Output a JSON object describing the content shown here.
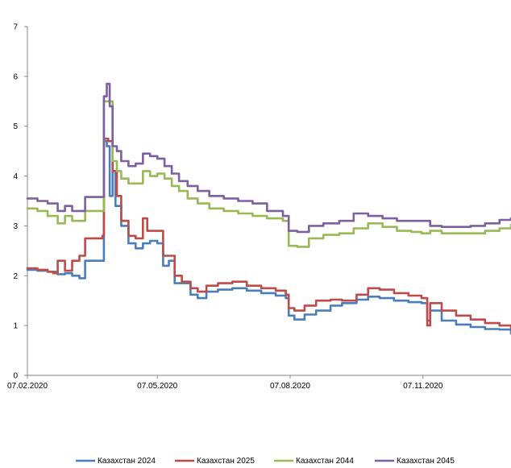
{
  "chart_data": {
    "type": "line",
    "title": "",
    "xlabel": "",
    "ylabel": "",
    "ylim": [
      0,
      7
    ],
    "yticks": [
      0,
      1,
      2,
      3,
      4,
      5,
      6,
      7
    ],
    "xrange": [
      "2020-02-07",
      "2021-01-07"
    ],
    "xticks": [
      {
        "label": "07.02.2020",
        "date": "2020-02-07"
      },
      {
        "label": "07.05.2020",
        "date": "2020-05-07"
      },
      {
        "label": "07.08.2020",
        "date": "2020-08-07"
      },
      {
        "label": "07.11.2020",
        "date": "2020-11-07"
      }
    ],
    "grid": false,
    "legend": "bottom",
    "series": [
      {
        "name": "Казахстан 2024",
        "color": "#4a7ebb",
        "points": [
          [
            "2020-02-07",
            2.12
          ],
          [
            "2020-02-14",
            2.1
          ],
          [
            "2020-02-21",
            2.08
          ],
          [
            "2020-02-28",
            2.03
          ],
          [
            "2020-03-04",
            2.05
          ],
          [
            "2020-03-09",
            2.0
          ],
          [
            "2020-03-14",
            1.95
          ],
          [
            "2020-03-18",
            2.3
          ],
          [
            "2020-03-25",
            2.3
          ],
          [
            "2020-03-30",
            2.3
          ],
          [
            "2020-03-31",
            4.7
          ],
          [
            "2020-04-02",
            4.6
          ],
          [
            "2020-04-04",
            3.6
          ],
          [
            "2020-04-06",
            4.1
          ],
          [
            "2020-04-08",
            3.4
          ],
          [
            "2020-04-12",
            3.0
          ],
          [
            "2020-04-17",
            2.65
          ],
          [
            "2020-04-22",
            2.55
          ],
          [
            "2020-04-27",
            2.65
          ],
          [
            "2020-05-02",
            2.7
          ],
          [
            "2020-05-07",
            2.65
          ],
          [
            "2020-05-11",
            2.2
          ],
          [
            "2020-05-15",
            2.3
          ],
          [
            "2020-05-19",
            1.85
          ],
          [
            "2020-05-24",
            1.85
          ],
          [
            "2020-05-30",
            1.62
          ],
          [
            "2020-06-04",
            1.55
          ],
          [
            "2020-06-10",
            1.68
          ],
          [
            "2020-06-18",
            1.72
          ],
          [
            "2020-06-28",
            1.75
          ],
          [
            "2020-07-08",
            1.7
          ],
          [
            "2020-07-18",
            1.65
          ],
          [
            "2020-07-28",
            1.6
          ],
          [
            "2020-08-04",
            1.55
          ],
          [
            "2020-08-06",
            1.2
          ],
          [
            "2020-08-10",
            1.12
          ],
          [
            "2020-08-17",
            1.22
          ],
          [
            "2020-08-25",
            1.3
          ],
          [
            "2020-09-04",
            1.4
          ],
          [
            "2020-09-12",
            1.45
          ],
          [
            "2020-09-22",
            1.52
          ],
          [
            "2020-09-30",
            1.58
          ],
          [
            "2020-10-08",
            1.55
          ],
          [
            "2020-10-18",
            1.5
          ],
          [
            "2020-10-28",
            1.47
          ],
          [
            "2020-11-06",
            1.45
          ],
          [
            "2020-11-10",
            1.1
          ],
          [
            "2020-11-12",
            1.3
          ],
          [
            "2020-11-20",
            1.1
          ],
          [
            "2020-11-30",
            1.02
          ],
          [
            "2020-12-10",
            0.97
          ],
          [
            "2020-12-20",
            0.93
          ],
          [
            "2020-12-30",
            0.92
          ],
          [
            "2021-01-07",
            0.84
          ]
        ]
      },
      {
        "name": "Казахстан 2025",
        "color": "#be4b48",
        "points": [
          [
            "2020-02-07",
            2.15
          ],
          [
            "2020-02-14",
            2.12
          ],
          [
            "2020-02-21",
            2.08
          ],
          [
            "2020-02-25",
            2.05
          ],
          [
            "2020-02-28",
            2.3
          ],
          [
            "2020-03-04",
            2.1
          ],
          [
            "2020-03-09",
            2.3
          ],
          [
            "2020-03-14",
            2.4
          ],
          [
            "2020-03-18",
            2.75
          ],
          [
            "2020-03-25",
            2.75
          ],
          [
            "2020-03-30",
            2.8
          ],
          [
            "2020-03-31",
            4.75
          ],
          [
            "2020-04-03",
            4.7
          ],
          [
            "2020-04-06",
            4.1
          ],
          [
            "2020-04-09",
            3.6
          ],
          [
            "2020-04-12",
            3.1
          ],
          [
            "2020-04-17",
            2.8
          ],
          [
            "2020-04-22",
            2.75
          ],
          [
            "2020-04-27",
            3.15
          ],
          [
            "2020-04-30",
            2.9
          ],
          [
            "2020-05-07",
            2.9
          ],
          [
            "2020-05-11",
            2.4
          ],
          [
            "2020-05-15",
            2.4
          ],
          [
            "2020-05-19",
            2.0
          ],
          [
            "2020-05-24",
            1.88
          ],
          [
            "2020-05-30",
            1.75
          ],
          [
            "2020-06-04",
            1.68
          ],
          [
            "2020-06-10",
            1.8
          ],
          [
            "2020-06-18",
            1.85
          ],
          [
            "2020-06-28",
            1.88
          ],
          [
            "2020-07-08",
            1.8
          ],
          [
            "2020-07-18",
            1.75
          ],
          [
            "2020-07-28",
            1.7
          ],
          [
            "2020-08-04",
            1.62
          ],
          [
            "2020-08-06",
            1.35
          ],
          [
            "2020-08-10",
            1.3
          ],
          [
            "2020-08-17",
            1.4
          ],
          [
            "2020-08-25",
            1.5
          ],
          [
            "2020-09-04",
            1.52
          ],
          [
            "2020-09-12",
            1.5
          ],
          [
            "2020-09-22",
            1.62
          ],
          [
            "2020-09-30",
            1.75
          ],
          [
            "2020-10-08",
            1.72
          ],
          [
            "2020-10-18",
            1.65
          ],
          [
            "2020-10-28",
            1.6
          ],
          [
            "2020-11-06",
            1.55
          ],
          [
            "2020-11-10",
            1.0
          ],
          [
            "2020-11-12",
            1.45
          ],
          [
            "2020-11-20",
            1.3
          ],
          [
            "2020-11-30",
            1.2
          ],
          [
            "2020-12-10",
            1.12
          ],
          [
            "2020-12-20",
            1.05
          ],
          [
            "2020-12-30",
            1.0
          ],
          [
            "2021-01-07",
            0.95
          ]
        ]
      },
      {
        "name": "Казахстан 2044",
        "color": "#98b954",
        "points": [
          [
            "2020-02-07",
            3.35
          ],
          [
            "2020-02-14",
            3.3
          ],
          [
            "2020-02-21",
            3.2
          ],
          [
            "2020-02-28",
            3.05
          ],
          [
            "2020-03-04",
            3.2
          ],
          [
            "2020-03-09",
            3.1
          ],
          [
            "2020-03-14",
            3.1
          ],
          [
            "2020-03-18",
            3.3
          ],
          [
            "2020-03-25",
            3.3
          ],
          [
            "2020-03-30",
            3.3
          ],
          [
            "2020-03-31",
            5.5
          ],
          [
            "2020-04-03",
            5.5
          ],
          [
            "2020-04-06",
            4.3
          ],
          [
            "2020-04-09",
            4.1
          ],
          [
            "2020-04-12",
            3.95
          ],
          [
            "2020-04-17",
            3.85
          ],
          [
            "2020-04-22",
            3.85
          ],
          [
            "2020-04-27",
            4.1
          ],
          [
            "2020-05-02",
            4.0
          ],
          [
            "2020-05-07",
            4.05
          ],
          [
            "2020-05-12",
            3.95
          ],
          [
            "2020-05-17",
            3.8
          ],
          [
            "2020-05-22",
            3.7
          ],
          [
            "2020-05-28",
            3.55
          ],
          [
            "2020-06-04",
            3.45
          ],
          [
            "2020-06-12",
            3.35
          ],
          [
            "2020-06-22",
            3.3
          ],
          [
            "2020-07-02",
            3.25
          ],
          [
            "2020-07-12",
            3.2
          ],
          [
            "2020-07-22",
            3.15
          ],
          [
            "2020-08-02",
            3.1
          ],
          [
            "2020-08-06",
            2.6
          ],
          [
            "2020-08-12",
            2.58
          ],
          [
            "2020-08-20",
            2.75
          ],
          [
            "2020-08-30",
            2.82
          ],
          [
            "2020-09-10",
            2.85
          ],
          [
            "2020-09-20",
            2.95
          ],
          [
            "2020-09-30",
            3.05
          ],
          [
            "2020-10-10",
            2.98
          ],
          [
            "2020-10-20",
            2.9
          ],
          [
            "2020-10-30",
            2.88
          ],
          [
            "2020-11-06",
            2.85
          ],
          [
            "2020-11-12",
            2.9
          ],
          [
            "2020-11-20",
            2.85
          ],
          [
            "2020-12-01",
            2.85
          ],
          [
            "2020-12-10",
            2.85
          ],
          [
            "2020-12-20",
            2.9
          ],
          [
            "2020-12-30",
            2.95
          ],
          [
            "2021-01-07",
            3.02
          ]
        ]
      },
      {
        "name": "Казахстан 2045",
        "color": "#7d60a0",
        "points": [
          [
            "2020-02-07",
            3.55
          ],
          [
            "2020-02-14",
            3.5
          ],
          [
            "2020-02-21",
            3.45
          ],
          [
            "2020-02-28",
            3.3
          ],
          [
            "2020-03-04",
            3.4
          ],
          [
            "2020-03-09",
            3.3
          ],
          [
            "2020-03-14",
            3.3
          ],
          [
            "2020-03-18",
            3.58
          ],
          [
            "2020-03-25",
            3.58
          ],
          [
            "2020-03-30",
            3.58
          ],
          [
            "2020-03-31",
            5.6
          ],
          [
            "2020-04-02",
            5.85
          ],
          [
            "2020-04-04",
            5.4
          ],
          [
            "2020-04-06",
            4.6
          ],
          [
            "2020-04-09",
            4.5
          ],
          [
            "2020-04-12",
            4.3
          ],
          [
            "2020-04-17",
            4.2
          ],
          [
            "2020-04-22",
            4.25
          ],
          [
            "2020-04-27",
            4.45
          ],
          [
            "2020-05-02",
            4.4
          ],
          [
            "2020-05-07",
            4.35
          ],
          [
            "2020-05-12",
            4.2
          ],
          [
            "2020-05-17",
            4.05
          ],
          [
            "2020-05-22",
            3.9
          ],
          [
            "2020-05-28",
            3.8
          ],
          [
            "2020-06-04",
            3.7
          ],
          [
            "2020-06-12",
            3.6
          ],
          [
            "2020-06-22",
            3.55
          ],
          [
            "2020-07-02",
            3.5
          ],
          [
            "2020-07-12",
            3.45
          ],
          [
            "2020-07-22",
            3.3
          ],
          [
            "2020-08-02",
            3.2
          ],
          [
            "2020-08-06",
            2.9
          ],
          [
            "2020-08-12",
            2.88
          ],
          [
            "2020-08-20",
            3.0
          ],
          [
            "2020-08-30",
            3.05
          ],
          [
            "2020-09-10",
            3.1
          ],
          [
            "2020-09-20",
            3.25
          ],
          [
            "2020-09-30",
            3.2
          ],
          [
            "2020-10-10",
            3.15
          ],
          [
            "2020-10-20",
            3.1
          ],
          [
            "2020-10-30",
            3.1
          ],
          [
            "2020-11-06",
            3.1
          ],
          [
            "2020-11-12",
            3.0
          ],
          [
            "2020-11-20",
            2.98
          ],
          [
            "2020-12-01",
            2.98
          ],
          [
            "2020-12-10",
            3.0
          ],
          [
            "2020-12-20",
            3.05
          ],
          [
            "2020-12-30",
            3.12
          ],
          [
            "2021-01-07",
            3.15
          ]
        ]
      }
    ]
  }
}
